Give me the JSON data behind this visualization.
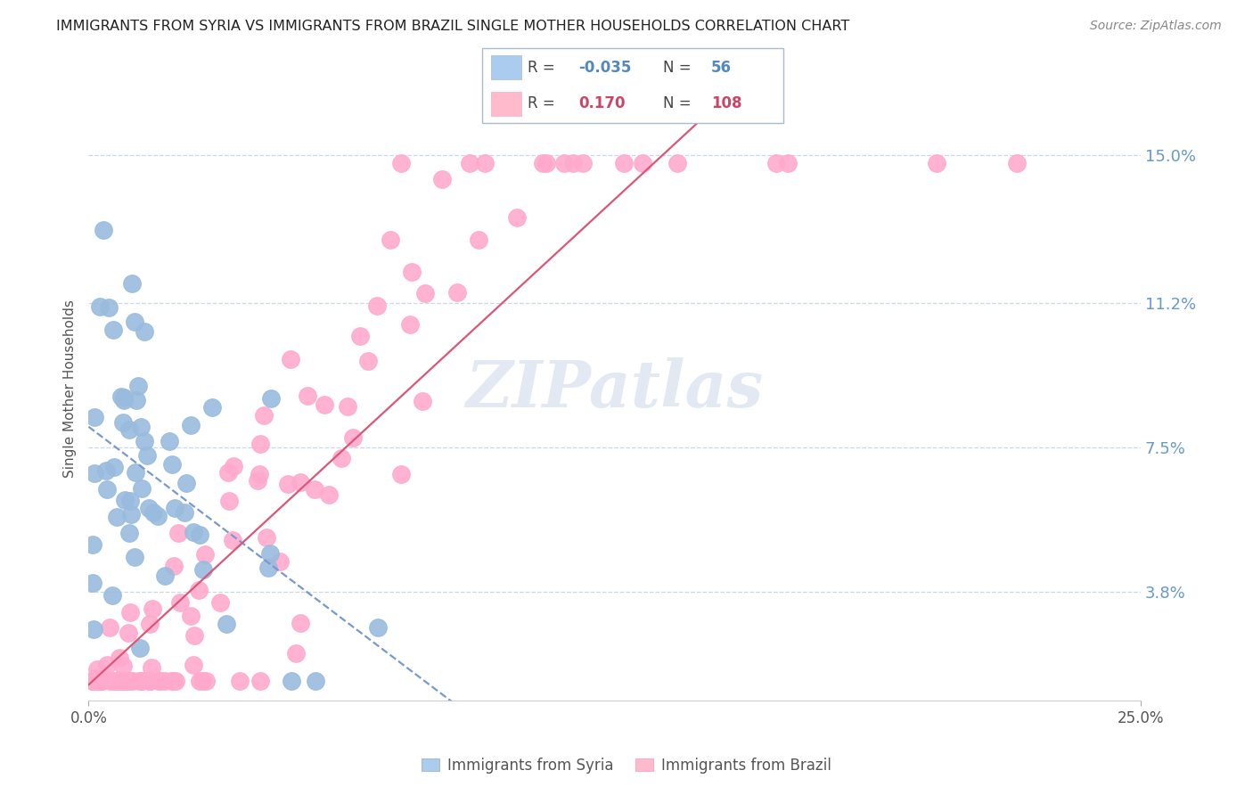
{
  "title": "IMMIGRANTS FROM SYRIA VS IMMIGRANTS FROM BRAZIL SINGLE MOTHER HOUSEHOLDS CORRELATION CHART",
  "source": "Source: ZipAtlas.com",
  "ylabel": "Single Mother Households",
  "yticks": [
    0.038,
    0.075,
    0.112,
    0.15
  ],
  "ytick_labels": [
    "3.8%",
    "7.5%",
    "11.2%",
    "15.0%"
  ],
  "xlim": [
    0.0,
    0.25
  ],
  "ylim": [
    0.01,
    0.17
  ],
  "watermark": "ZIPatlas",
  "syria_R": -0.035,
  "syria_N": 56,
  "brazil_R": 0.17,
  "brazil_N": 108,
  "syria_color": "#99bbdd",
  "brazil_color": "#ffaacc",
  "syria_trend_color": "#7799cc",
  "brazil_trend_color": "#dd5577",
  "legend_syria_color": "#aaccee",
  "legend_brazil_color": "#ffbbcc",
  "legend_R_color_syria": "#5588bb",
  "legend_R_color_brazil": "#cc4466",
  "legend_N_color": "#5588bb",
  "legend_N_color_brazil": "#cc4466",
  "grid_color": "#c8d8e8",
  "tick_label_color": "#6699cc"
}
